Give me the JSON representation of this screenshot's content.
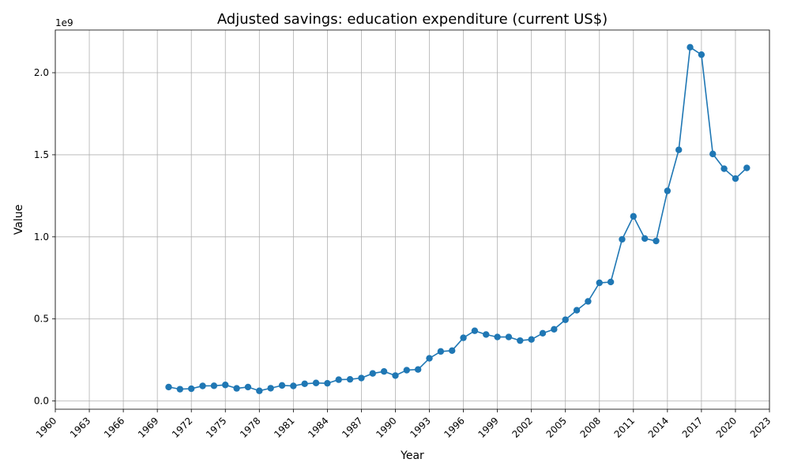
{
  "chart_data": {
    "type": "line",
    "title": "Adjusted savings: education expenditure (current US$)",
    "xlabel": "Year",
    "ylabel": "Value",
    "y_offset_label": "1e9",
    "xlim": [
      1960,
      2023
    ],
    "ylim": [
      -0.05,
      2.26
    ],
    "x_ticks": [
      1960,
      1963,
      1966,
      1969,
      1972,
      1975,
      1978,
      1981,
      1984,
      1987,
      1990,
      1993,
      1996,
      1999,
      2002,
      2005,
      2008,
      2011,
      2014,
      2017,
      2020,
      2023
    ],
    "y_ticks": [
      "0.0",
      "0.5",
      "1.0",
      "1.5",
      "2.0"
    ],
    "grid": true,
    "legend": "none",
    "color": "#1f77b4",
    "marker": "circle",
    "series": [
      {
        "x": [
          1970,
          1971,
          1972,
          1973,
          1974,
          1975,
          1976,
          1977,
          1978,
          1979,
          1980,
          1981,
          1982,
          1983,
          1984,
          1985,
          1986,
          1987,
          1988,
          1989,
          1990,
          1991,
          1992,
          1993,
          1994,
          1995,
          1996,
          1997,
          1998,
          1999,
          2000,
          2001,
          2002,
          2003,
          2004,
          2005,
          2006,
          2007,
          2008,
          2009,
          2010,
          2011,
          2012,
          2013,
          2014,
          2015,
          2016,
          2017,
          2018,
          2019,
          2020,
          2021
        ],
        "values": [
          0.085,
          0.072,
          0.075,
          0.092,
          0.093,
          0.098,
          0.077,
          0.085,
          0.062,
          0.078,
          0.095,
          0.092,
          0.105,
          0.11,
          0.108,
          0.13,
          0.132,
          0.14,
          0.168,
          0.18,
          0.155,
          0.188,
          0.192,
          0.26,
          0.302,
          0.307,
          0.385,
          0.428,
          0.405,
          0.39,
          0.39,
          0.368,
          0.375,
          0.413,
          0.437,
          0.495,
          0.553,
          0.607,
          0.72,
          0.725,
          0.985,
          1.125,
          0.99,
          0.975,
          1.28,
          1.53,
          2.155,
          2.11,
          1.505,
          1.415,
          1.355,
          1.42
        ]
      }
    ]
  }
}
